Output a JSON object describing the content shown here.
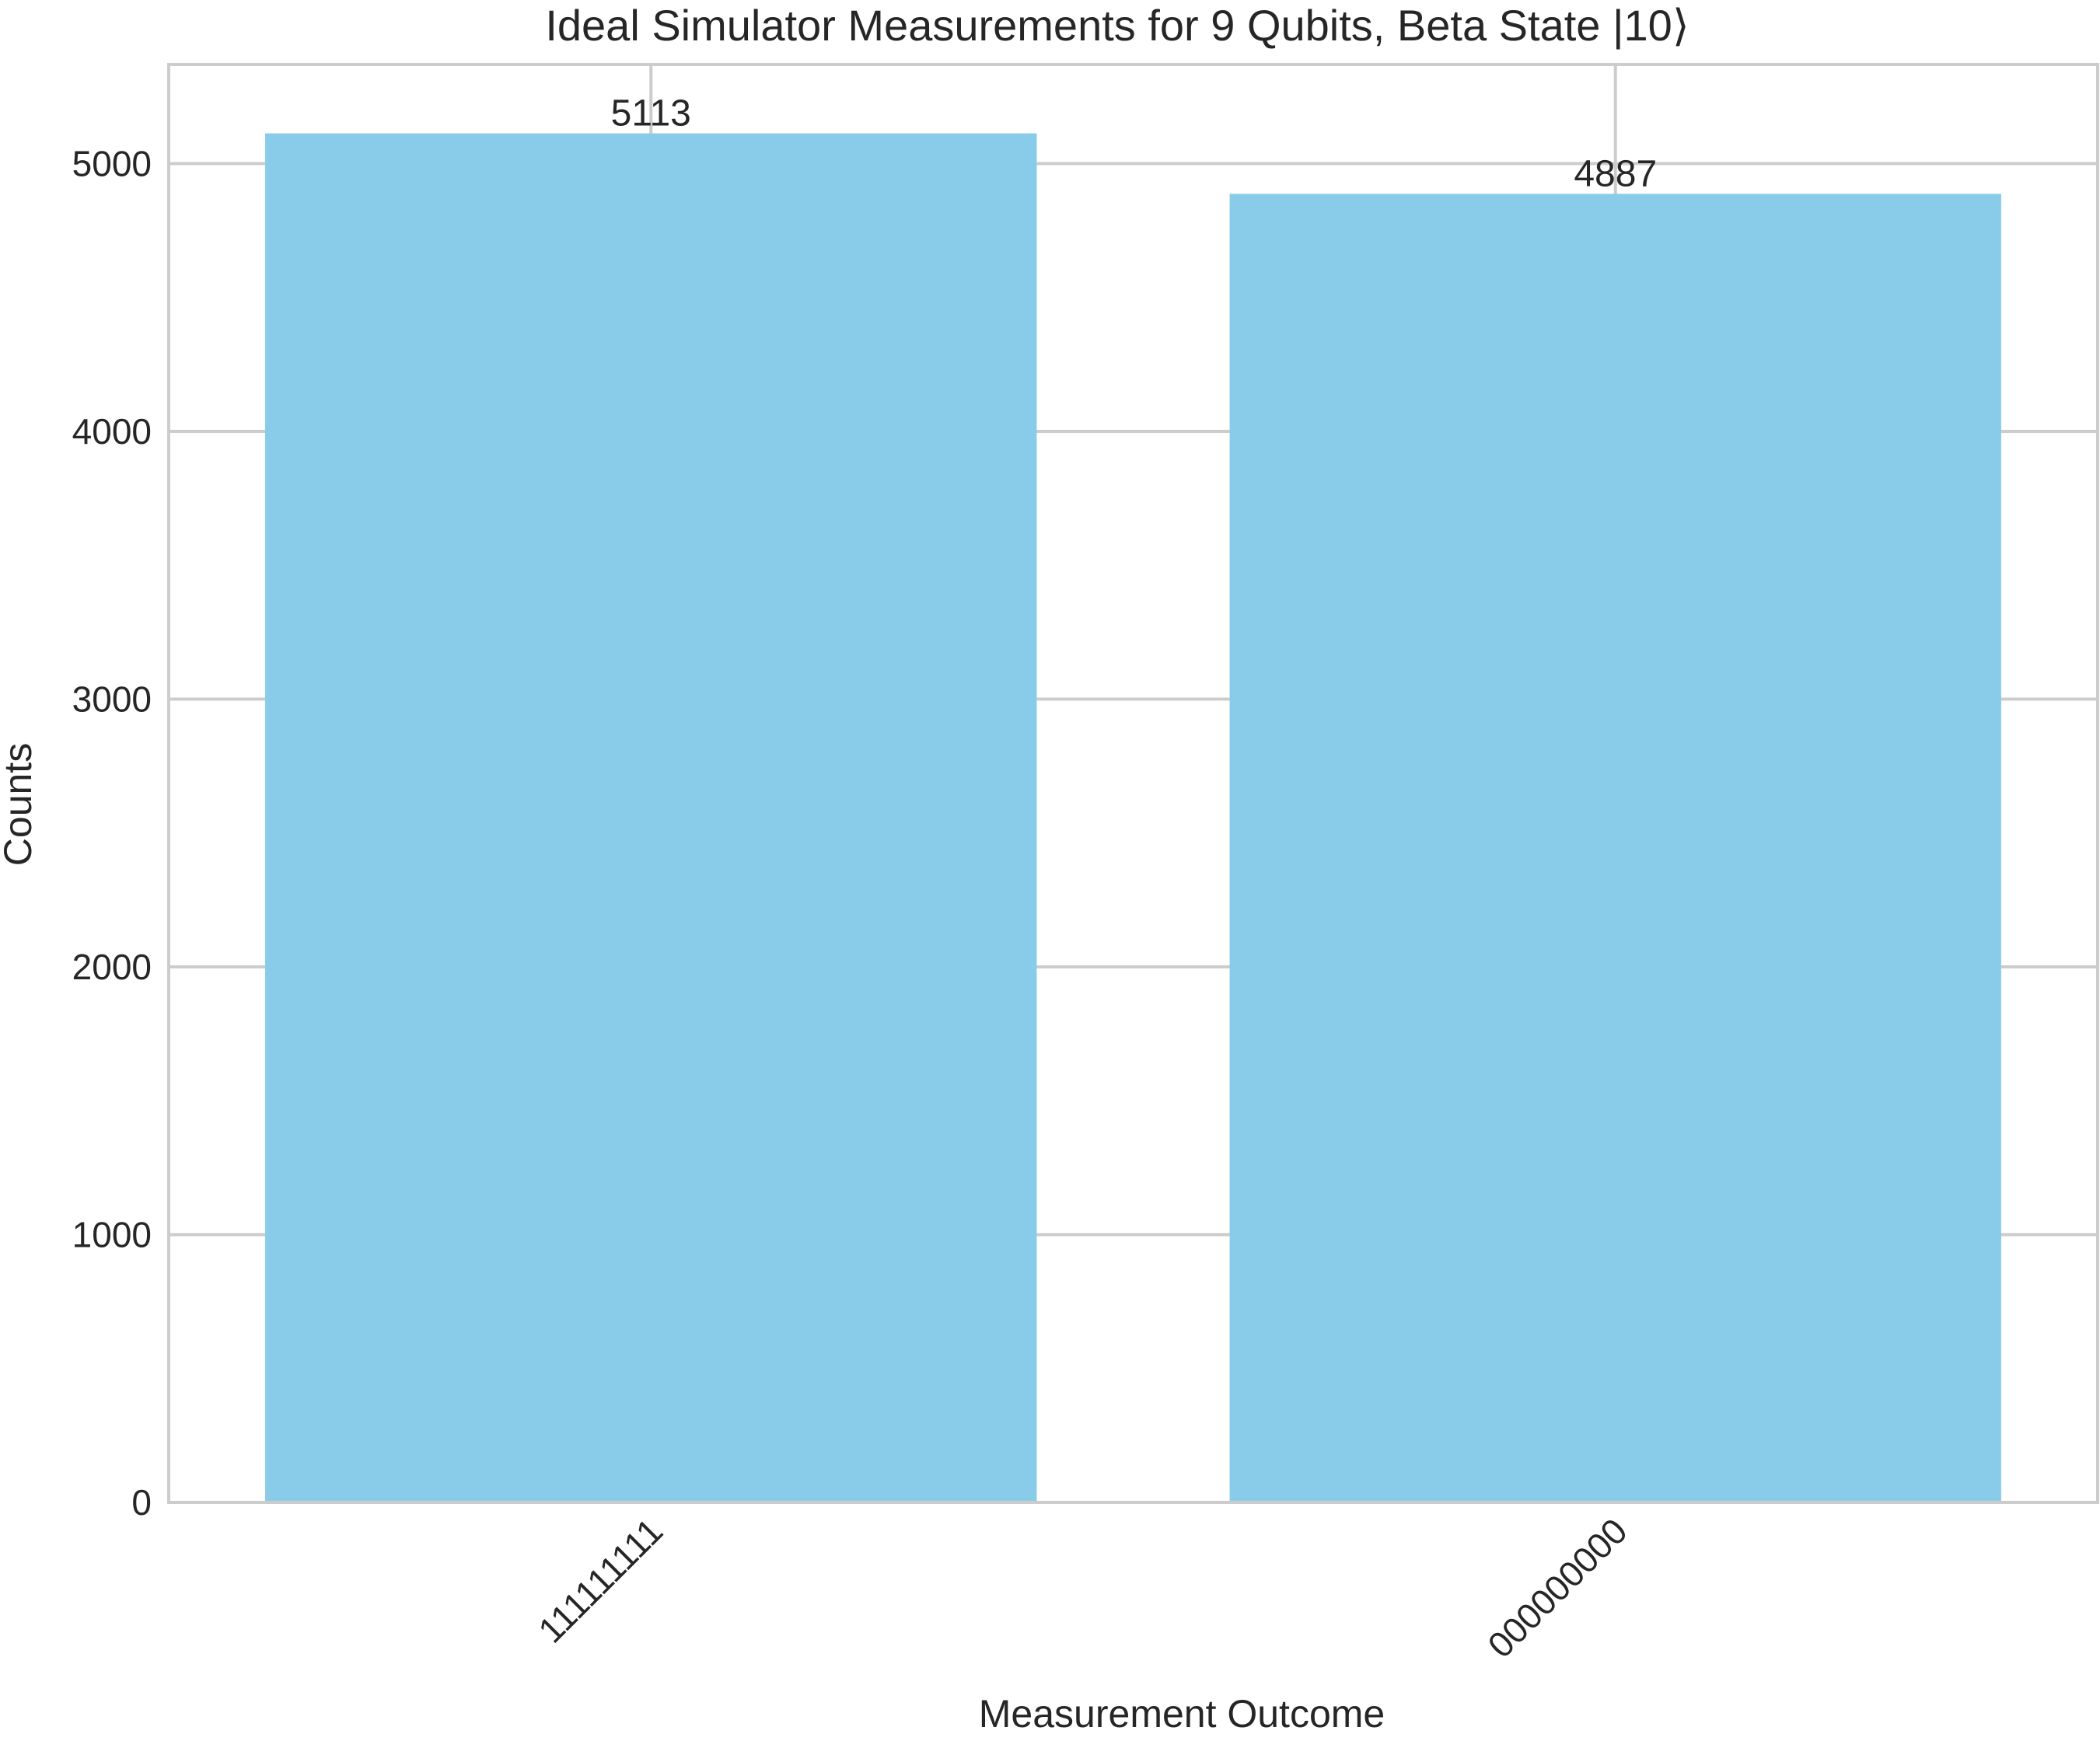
{
  "chart_data": {
    "type": "bar",
    "title": "Ideal Simulator Measurements for 9 Qubits, Beta State |10⟩",
    "xlabel": "Measurement Outcome",
    "ylabel": "Counts",
    "categories": [
      "111111111",
      "000000000"
    ],
    "values": [
      5113,
      4887
    ],
    "data_labels": [
      "5113",
      "4887"
    ],
    "ylim": [
      0,
      5370
    ],
    "yticks": [
      0,
      1000,
      2000,
      3000,
      4000,
      5000
    ],
    "ytick_labels": [
      "0",
      "1000",
      "2000",
      "3000",
      "4000",
      "5000"
    ],
    "grid": true,
    "bar_color": "#89cce9"
  }
}
